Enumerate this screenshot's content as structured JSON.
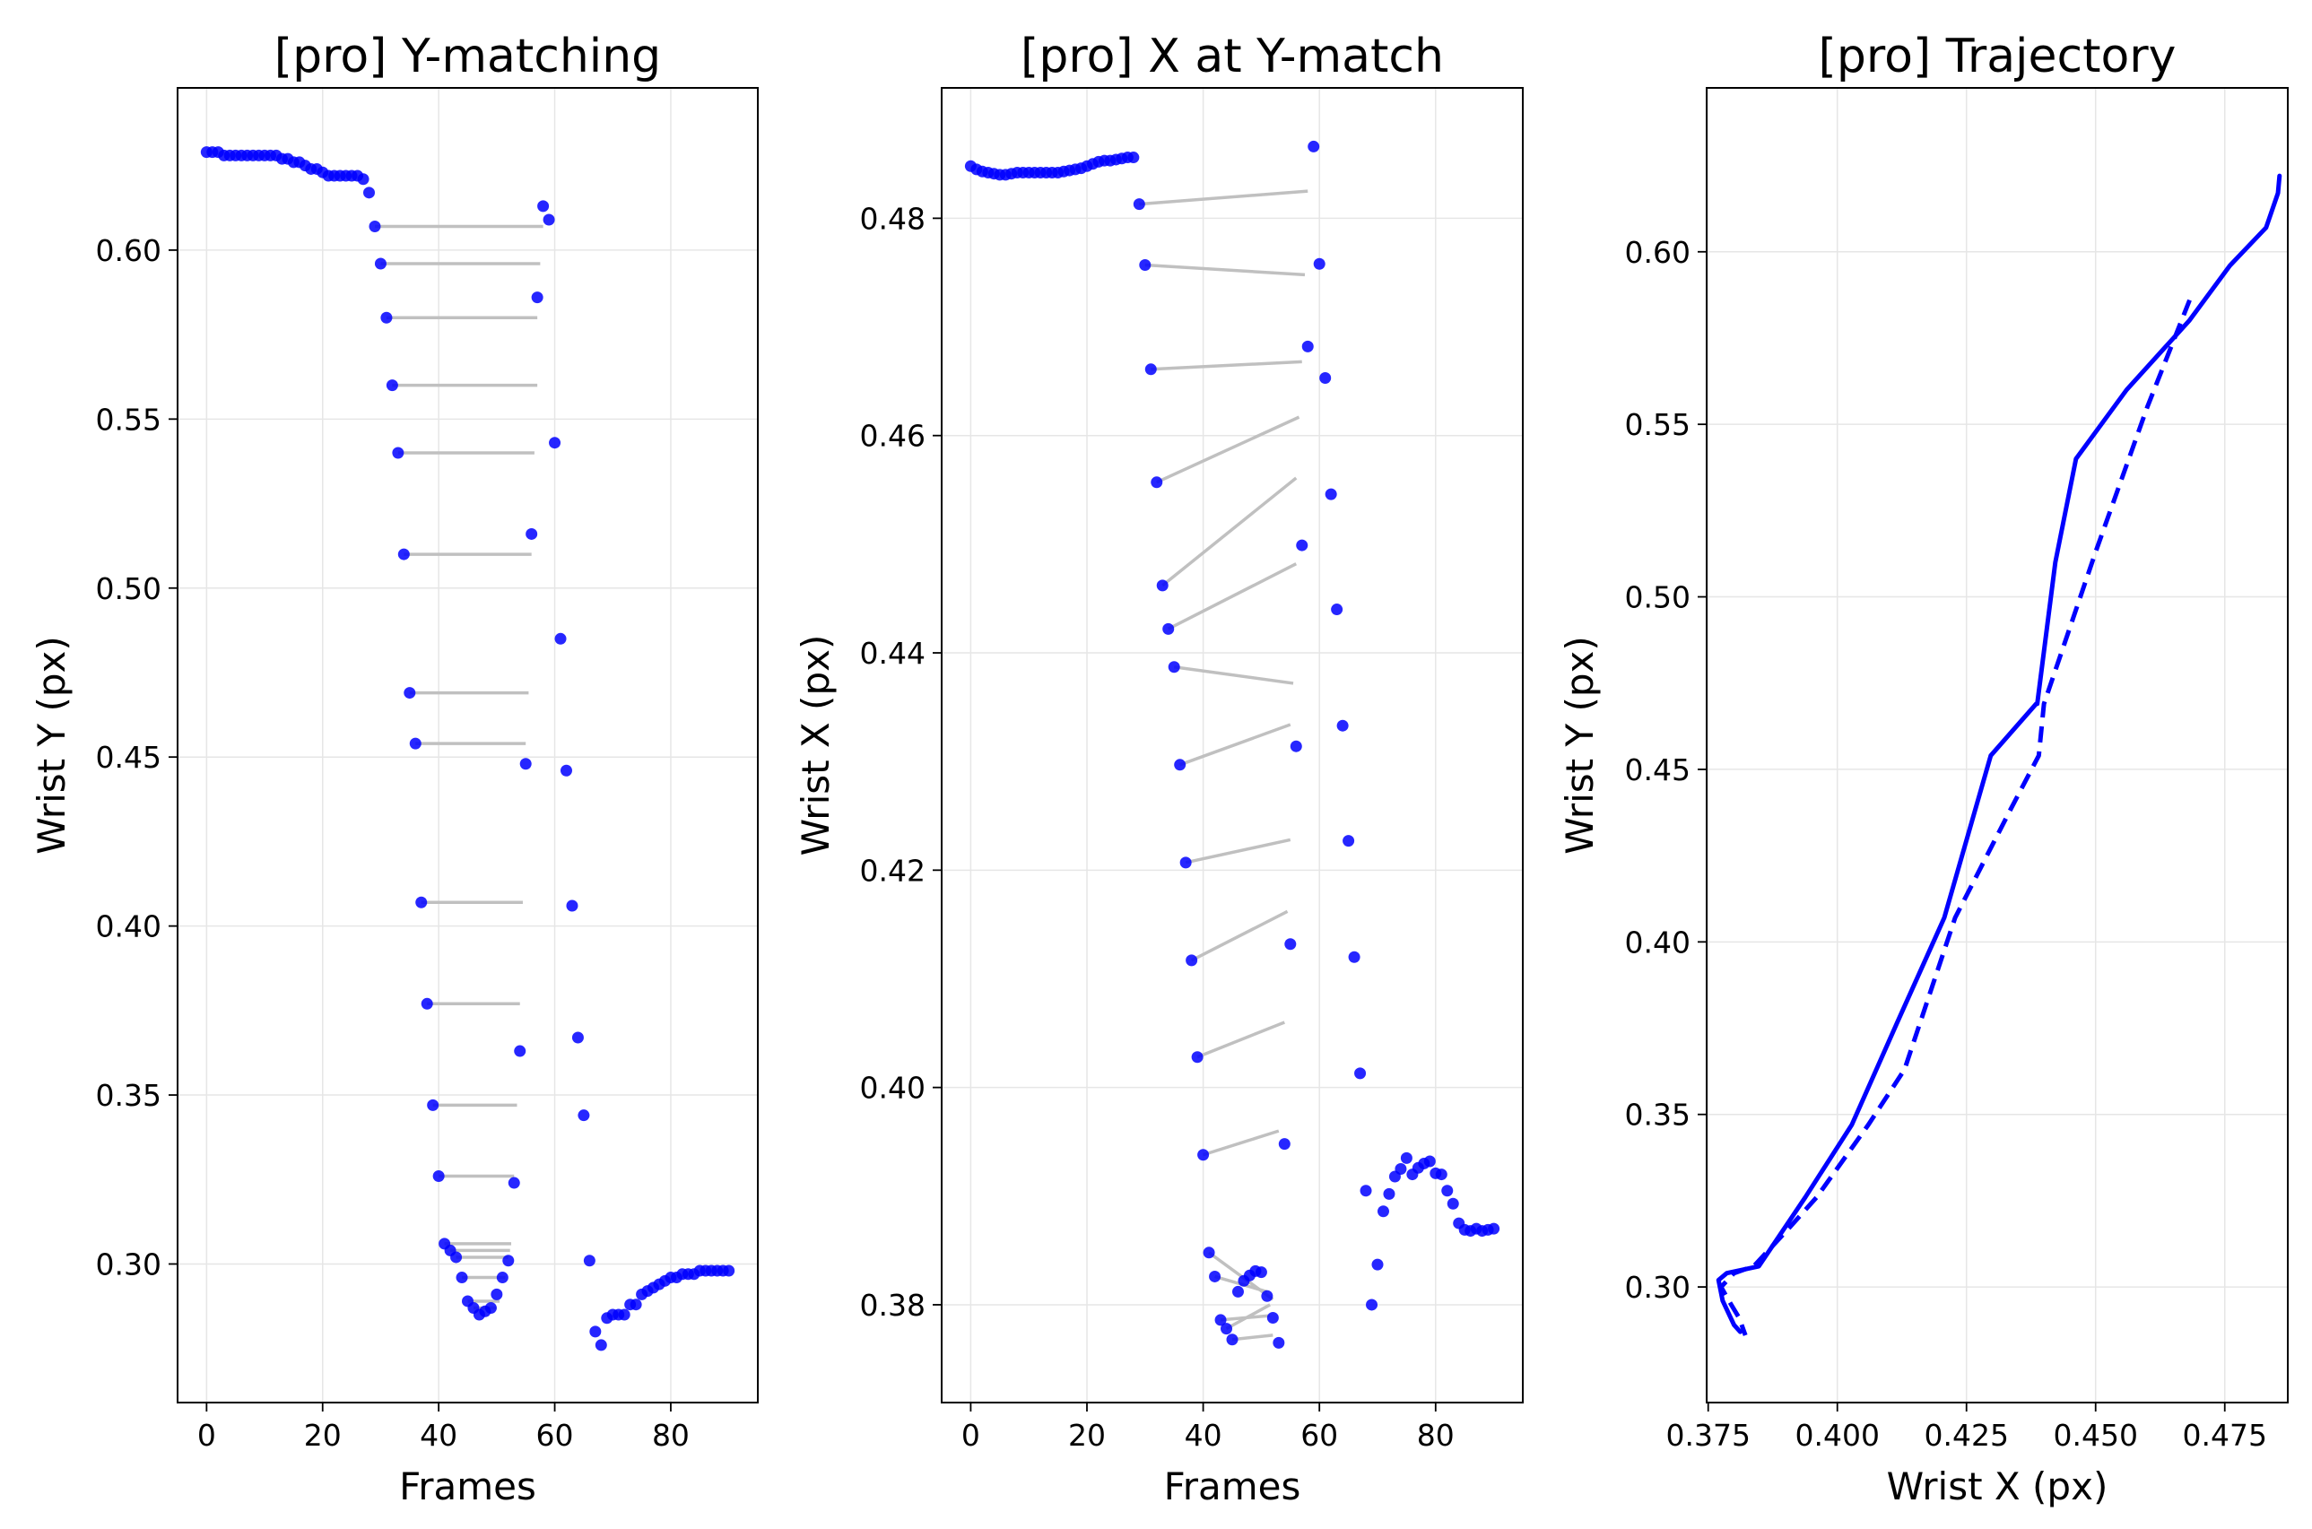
{
  "chart_data": [
    {
      "type": "scatter",
      "title": "[pro] Y-matching",
      "xlabel": "Frames",
      "ylabel": "Wrist Y (px)",
      "xlim": [
        -5,
        95
      ],
      "ylim": [
        0.259,
        0.648
      ],
      "xticks": [
        0,
        20,
        40,
        60,
        80
      ],
      "yticks": [
        0.3,
        0.35,
        0.4,
        0.45,
        0.5,
        0.55,
        0.6
      ],
      "xtick_labels": [
        "0",
        "20",
        "40",
        "60",
        "80"
      ],
      "ytick_labels": [
        "0.30",
        "0.35",
        "0.40",
        "0.45",
        "0.50",
        "0.55",
        "0.60"
      ],
      "grid": true,
      "point_color": "#0000ff",
      "line_color": "#c0c0c0",
      "series": [
        {
          "name": "wrist_y",
          "x": [
            0,
            1,
            2,
            3,
            4,
            5,
            6,
            7,
            8,
            9,
            10,
            11,
            12,
            13,
            14,
            15,
            16,
            17,
            18,
            19,
            20,
            21,
            22,
            23,
            24,
            25,
            26,
            27,
            28,
            29,
            30,
            31,
            32,
            33,
            34,
            35,
            36,
            37,
            38,
            39,
            40,
            41,
            42,
            43,
            44,
            45,
            46,
            47,
            48,
            49,
            50,
            51,
            52,
            53,
            54,
            55,
            56,
            57,
            58,
            59,
            60,
            61,
            62,
            63,
            64,
            65,
            66,
            67,
            68,
            69,
            70,
            71,
            72,
            73,
            74,
            75,
            76,
            77,
            78,
            79,
            80,
            81,
            82,
            83,
            84,
            85,
            86,
            87,
            88,
            89,
            90
          ],
          "y": [
            0.629,
            0.629,
            0.629,
            0.628,
            0.628,
            0.628,
            0.628,
            0.628,
            0.628,
            0.628,
            0.628,
            0.628,
            0.628,
            0.627,
            0.627,
            0.626,
            0.626,
            0.625,
            0.624,
            0.624,
            0.623,
            0.622,
            0.622,
            0.622,
            0.622,
            0.622,
            0.622,
            0.621,
            0.617,
            0.607,
            0.596,
            0.58,
            0.56,
            0.54,
            0.51,
            0.469,
            0.454,
            0.407,
            0.377,
            0.347,
            0.326,
            0.306,
            0.304,
            0.302,
            0.296,
            0.289,
            0.287,
            0.285,
            0.286,
            0.287,
            0.291,
            0.296,
            0.301,
            0.324,
            0.363,
            0.448,
            0.516,
            0.586,
            0.613,
            0.609,
            0.543,
            0.485,
            0.446,
            0.406,
            0.367,
            0.344,
            0.301,
            0.28,
            0.276,
            0.284,
            0.285,
            0.285,
            0.285,
            0.288,
            0.288,
            0.291,
            0.292,
            0.293,
            0.294,
            0.295,
            0.296,
            0.296,
            0.297,
            0.297,
            0.297,
            0.298,
            0.298,
            0.298,
            0.298,
            0.298,
            0.298
          ]
        }
      ],
      "matches": [
        {
          "from": [
            29,
            0.607
          ],
          "to": [
            58,
            0.607
          ]
        },
        {
          "from": [
            30,
            0.596
          ],
          "to": [
            57.5,
            0.596
          ]
        },
        {
          "from": [
            31,
            0.58
          ],
          "to": [
            57,
            0.58
          ]
        },
        {
          "from": [
            32,
            0.56
          ],
          "to": [
            57,
            0.56
          ]
        },
        {
          "from": [
            33,
            0.54
          ],
          "to": [
            56.5,
            0.54
          ]
        },
        {
          "from": [
            34,
            0.51
          ],
          "to": [
            56,
            0.51
          ]
        },
        {
          "from": [
            35,
            0.469
          ],
          "to": [
            55.5,
            0.469
          ]
        },
        {
          "from": [
            36,
            0.454
          ],
          "to": [
            55,
            0.454
          ]
        },
        {
          "from": [
            37,
            0.407
          ],
          "to": [
            54.5,
            0.407
          ]
        },
        {
          "from": [
            38,
            0.377
          ],
          "to": [
            54,
            0.377
          ]
        },
        {
          "from": [
            39,
            0.347
          ],
          "to": [
            53.5,
            0.347
          ]
        },
        {
          "from": [
            40,
            0.326
          ],
          "to": [
            53,
            0.326
          ]
        },
        {
          "from": [
            41,
            0.306
          ],
          "to": [
            52.5,
            0.306
          ]
        },
        {
          "from": [
            42,
            0.304
          ],
          "to": [
            52.3,
            0.304
          ]
        },
        {
          "from": [
            43,
            0.302
          ],
          "to": [
            52,
            0.302
          ]
        },
        {
          "from": [
            44,
            0.296
          ],
          "to": [
            51.5,
            0.296
          ]
        },
        {
          "from": [
            45,
            0.289
          ],
          "to": [
            50.5,
            0.289
          ]
        },
        {
          "from": [
            46,
            0.287
          ],
          "to": [
            50,
            0.287
          ]
        }
      ]
    },
    {
      "type": "scatter",
      "title": "[pro] X at Y-match",
      "xlabel": "Frames",
      "ylabel": "Wrist X (px)",
      "xlim": [
        -5,
        95
      ],
      "ylim": [
        0.371,
        0.492
      ],
      "xticks": [
        0,
        20,
        40,
        60,
        80
      ],
      "yticks": [
        0.38,
        0.4,
        0.42,
        0.44,
        0.46,
        0.48
      ],
      "xtick_labels": [
        "0",
        "20",
        "40",
        "60",
        "80"
      ],
      "ytick_labels": [
        "0.38",
        "0.40",
        "0.42",
        "0.44",
        "0.46",
        "0.48"
      ],
      "grid": true,
      "point_color": "#0000ff",
      "line_color": "#c0c0c0",
      "series": [
        {
          "name": "wrist_x",
          "x": [
            0,
            1,
            2,
            3,
            4,
            5,
            6,
            7,
            8,
            9,
            10,
            11,
            12,
            13,
            14,
            15,
            16,
            17,
            18,
            19,
            20,
            21,
            22,
            23,
            24,
            25,
            26,
            27,
            28,
            29,
            30,
            31,
            32,
            33,
            34,
            35,
            36,
            37,
            38,
            39,
            40,
            41,
            42,
            43,
            44,
            45,
            46,
            47,
            48,
            49,
            50,
            51,
            52,
            53,
            54,
            55,
            56,
            57,
            58,
            59,
            60,
            61,
            62,
            63,
            64,
            65,
            66,
            67,
            68,
            69,
            70,
            71,
            72,
            73,
            74,
            75,
            76,
            77,
            78,
            79,
            80,
            81,
            82,
            83,
            84,
            85,
            86,
            87,
            88,
            89,
            90
          ],
          "y": [
            0.4848,
            0.4845,
            0.4843,
            0.4842,
            0.4841,
            0.484,
            0.484,
            0.4841,
            0.4842,
            0.4842,
            0.4842,
            0.4842,
            0.4842,
            0.4842,
            0.4842,
            0.4842,
            0.4843,
            0.4844,
            0.4845,
            0.4846,
            0.4848,
            0.485,
            0.4852,
            0.4853,
            0.4853,
            0.4854,
            0.4855,
            0.4856,
            0.4856,
            0.4813,
            0.4757,
            0.4661,
            0.4557,
            0.4462,
            0.4422,
            0.4387,
            0.4297,
            0.4207,
            0.4117,
            0.4028,
            0.3938,
            0.3848,
            0.3826,
            0.3786,
            0.3778,
            0.3768,
            0.3812,
            0.3822,
            0.3827,
            0.3831,
            0.383,
            0.3808,
            0.3788,
            0.3765,
            0.3948,
            0.4132,
            0.4314,
            0.4499,
            0.4682,
            0.4866,
            0.4758,
            0.4653,
            0.4546,
            0.444,
            0.4333,
            0.4227,
            0.412,
            0.4013,
            0.3905,
            0.38,
            0.3837,
            0.3886,
            0.3902,
            0.3918,
            0.3925,
            0.3935,
            0.392,
            0.3926,
            0.393,
            0.3932,
            0.3921,
            0.392,
            0.3905,
            0.3893,
            0.3875,
            0.3869,
            0.3868,
            0.387,
            0.3868,
            0.3869,
            0.387
          ]
        }
      ],
      "matches": [
        {
          "from": [
            29,
            0.4813
          ],
          "to": [
            58,
            0.4825
          ]
        },
        {
          "from": [
            30,
            0.4757
          ],
          "to": [
            57.5,
            0.4748
          ]
        },
        {
          "from": [
            31,
            0.4661
          ],
          "to": [
            57,
            0.4668
          ]
        },
        {
          "from": [
            32,
            0.4557
          ],
          "to": [
            56.5,
            0.4617
          ]
        },
        {
          "from": [
            33,
            0.4462
          ],
          "to": [
            56,
            0.4561
          ]
        },
        {
          "from": [
            34,
            0.4422
          ],
          "to": [
            56,
            0.4482
          ]
        },
        {
          "from": [
            35,
            0.4387
          ],
          "to": [
            55.5,
            0.4372
          ]
        },
        {
          "from": [
            36,
            0.4297
          ],
          "to": [
            55,
            0.4334
          ]
        },
        {
          "from": [
            37,
            0.4207
          ],
          "to": [
            55,
            0.4228
          ]
        },
        {
          "from": [
            38,
            0.4117
          ],
          "to": [
            54.5,
            0.4162
          ]
        },
        {
          "from": [
            39,
            0.4028
          ],
          "to": [
            54,
            0.406
          ]
        },
        {
          "from": [
            40,
            0.3938
          ],
          "to": [
            53,
            0.396
          ]
        },
        {
          "from": [
            41,
            0.3848
          ],
          "to": [
            52,
            0.3805
          ]
        },
        {
          "from": [
            42,
            0.3826
          ],
          "to": [
            51,
            0.3812
          ]
        },
        {
          "from": [
            43,
            0.3786
          ],
          "to": [
            51.5,
            0.379
          ]
        },
        {
          "from": [
            44,
            0.3778
          ],
          "to": [
            51.5,
            0.38
          ]
        },
        {
          "from": [
            45,
            0.3768
          ],
          "to": [
            52,
            0.3772
          ]
        }
      ]
    },
    {
      "type": "line",
      "title": "[pro] Trajectory",
      "xlabel": "Wrist X (px)",
      "ylabel": "Wrist Y (px)",
      "xlim": [
        0.3747,
        0.4872
      ],
      "ylim": [
        0.2665,
        0.6475
      ],
      "xticks": [
        0.375,
        0.4,
        0.425,
        0.45,
        0.475
      ],
      "yticks": [
        0.3,
        0.35,
        0.4,
        0.45,
        0.5,
        0.55,
        0.6
      ],
      "xtick_labels": [
        "0.375",
        "0.400",
        "0.425",
        "0.450",
        "0.475"
      ],
      "ytick_labels": [
        "0.30",
        "0.35",
        "0.40",
        "0.45",
        "0.50",
        "0.55",
        "0.60"
      ],
      "grid": true,
      "line_color": "#0000ff",
      "series": [
        {
          "name": "solid",
          "style": "solid",
          "x": [
            0.4856,
            0.4853,
            0.483,
            0.476,
            0.4681,
            0.456,
            0.4462,
            0.4422,
            0.4387,
            0.4385,
            0.4297,
            0.4207,
            0.4117,
            0.4028,
            0.3938,
            0.3848,
            0.3786,
            0.377,
            0.3778,
            0.38,
            0.3812
          ],
          "y": [
            0.622,
            0.617,
            0.607,
            0.596,
            0.58,
            0.56,
            0.54,
            0.51,
            0.469,
            0.469,
            0.454,
            0.407,
            0.377,
            0.347,
            0.326,
            0.306,
            0.304,
            0.302,
            0.296,
            0.289,
            0.287
          ]
        },
        {
          "name": "dashed",
          "style": "dashed",
          "x": [
            0.4682,
            0.46,
            0.45,
            0.44,
            0.439,
            0.4334,
            0.4228,
            0.413,
            0.406,
            0.396,
            0.39,
            0.3838,
            0.38,
            0.3775,
            0.379,
            0.381,
            0.3822
          ],
          "y": [
            0.586,
            0.555,
            0.513,
            0.469,
            0.454,
            0.438,
            0.407,
            0.363,
            0.347,
            0.326,
            0.316,
            0.306,
            0.304,
            0.3,
            0.296,
            0.291,
            0.286
          ]
        }
      ]
    }
  ]
}
